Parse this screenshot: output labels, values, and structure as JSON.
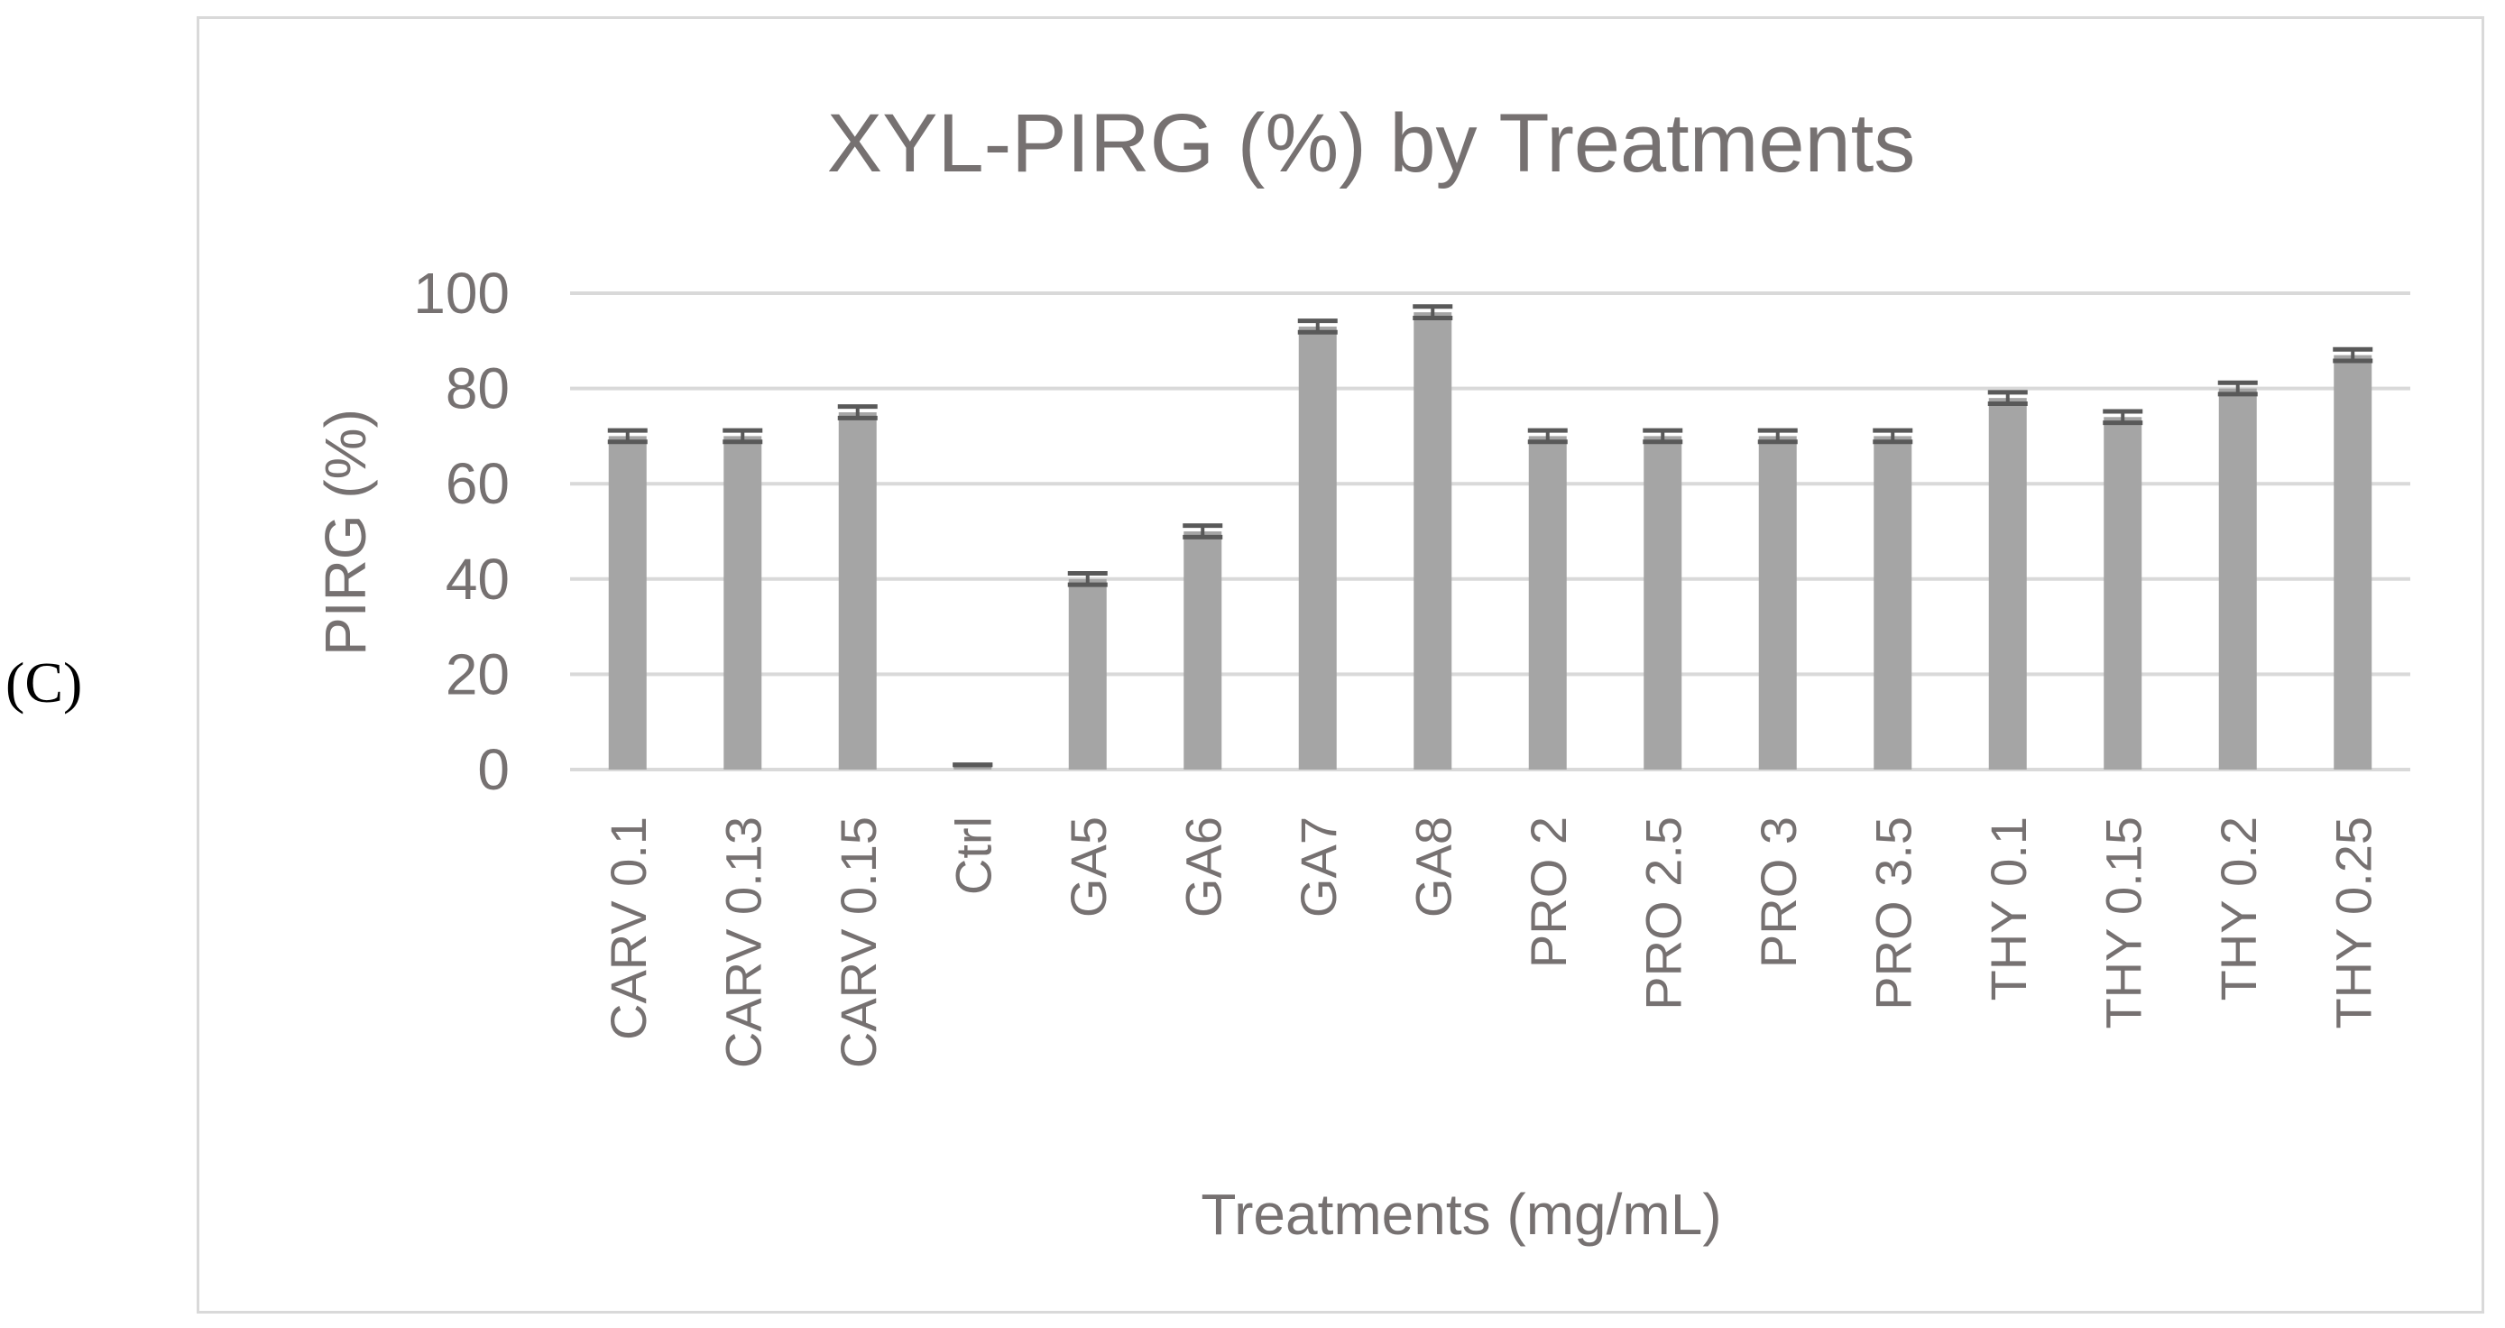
{
  "panel_label": "(C)",
  "chart_data": {
    "type": "bar",
    "title": "XYL-PIRG (%) by Treatments",
    "xlabel": "Treatments (mg/mL)",
    "ylabel": "PIRG (%)",
    "ylim": [
      0,
      100
    ],
    "yticks": [
      0,
      20,
      40,
      60,
      80,
      100
    ],
    "grid": true,
    "legend": "none",
    "categories": [
      "CARV 0.1",
      "CARV 0.13",
      "CARV 0.15",
      "Ctrl",
      "GA5",
      "GA6",
      "GA7",
      "GA8",
      "PRO 2",
      "PRO 2.5",
      "PRO 3",
      "PRO 3.5",
      "THY 0.1",
      "THY 0.15",
      "THY 0.2",
      "THY 0.25"
    ],
    "values": [
      70,
      70,
      75,
      1,
      40,
      50,
      93,
      96,
      70,
      70,
      70,
      70,
      78,
      74,
      80,
      87
    ],
    "errors": [
      1.2,
      1.2,
      1.2,
      0,
      1.2,
      1.2,
      1.2,
      1.2,
      1.2,
      1.2,
      1.2,
      1.2,
      1.2,
      1.2,
      1.2,
      1.2
    ],
    "colors": {
      "bar": "#a5a5a5",
      "error": "#595959",
      "grid": "#d9d9d9",
      "text": "#767171"
    }
  }
}
